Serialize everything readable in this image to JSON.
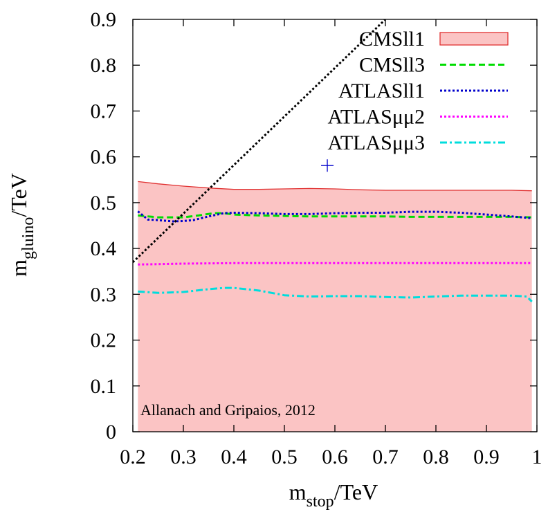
{
  "chart_data": {
    "type": "area",
    "xlabel": {
      "main": "m",
      "sub": "stop",
      "unit": "/TeV"
    },
    "ylabel": {
      "main": "m",
      "sub": "gluino",
      "unit": "/TeV"
    },
    "xlim": [
      0.2,
      1.0
    ],
    "ylim": [
      0.0,
      0.9
    ],
    "x_ticks": [
      0.2,
      0.3,
      0.4,
      0.5,
      0.6,
      0.7,
      0.8,
      0.9,
      1.0
    ],
    "x_tick_labels": [
      "0.2",
      "0.3",
      "0.4",
      "0.5",
      "0.6",
      "0.7",
      "0.8",
      "0.9",
      "1"
    ],
    "y_ticks": [
      0,
      0.1,
      0.2,
      0.3,
      0.4,
      0.5,
      0.6,
      0.7,
      0.8,
      0.9
    ],
    "y_tick_labels": [
      "0",
      "0.1",
      "0.2",
      "0.3",
      "0.4",
      "0.5",
      "0.6",
      "0.7",
      "0.8",
      "0.9"
    ],
    "grid": false,
    "legend_position": "top-right",
    "annotation": "Allanach and Gripaios, 2012",
    "series": [
      {
        "name": "CMSll1",
        "style": "filled-area",
        "color": "#e03030",
        "fill": "#fbc4c4",
        "x": [
          0.21,
          0.25,
          0.3,
          0.35,
          0.4,
          0.45,
          0.5,
          0.55,
          0.6,
          0.65,
          0.7,
          0.75,
          0.8,
          0.85,
          0.9,
          0.95,
          0.99
        ],
        "y": [
          0.546,
          0.541,
          0.536,
          0.532,
          0.529,
          0.529,
          0.53,
          0.531,
          0.53,
          0.528,
          0.527,
          0.527,
          0.527,
          0.527,
          0.527,
          0.527,
          0.526
        ]
      },
      {
        "name": "CMSll3",
        "style": "dashed",
        "color": "#00dd00",
        "x": [
          0.21,
          0.25,
          0.3,
          0.33,
          0.36,
          0.38,
          0.4,
          0.45,
          0.5,
          0.55,
          0.6,
          0.65,
          0.7,
          0.75,
          0.8,
          0.85,
          0.9,
          0.95,
          0.99
        ],
        "y": [
          0.472,
          0.468,
          0.468,
          0.472,
          0.477,
          0.477,
          0.474,
          0.472,
          0.471,
          0.47,
          0.47,
          0.47,
          0.47,
          0.469,
          0.469,
          0.469,
          0.469,
          0.469,
          0.468
        ]
      },
      {
        "name": "ATLASll1",
        "style": "dotted",
        "color": "#0000cc",
        "x": [
          0.21,
          0.23,
          0.25,
          0.28,
          0.3,
          0.32,
          0.35,
          0.38,
          0.4,
          0.45,
          0.5,
          0.55,
          0.6,
          0.65,
          0.7,
          0.75,
          0.8,
          0.85,
          0.9,
          0.95,
          0.99
        ],
        "y": [
          0.481,
          0.463,
          0.462,
          0.459,
          0.46,
          0.462,
          0.47,
          0.477,
          0.478,
          0.477,
          0.475,
          0.475,
          0.477,
          0.478,
          0.478,
          0.48,
          0.48,
          0.478,
          0.474,
          0.47,
          0.466
        ]
      },
      {
        "name": "ATLASμμ2",
        "style": "dotted",
        "color": "#ff00ff",
        "x": [
          0.21,
          0.3,
          0.4,
          0.5,
          0.6,
          0.7,
          0.8,
          0.9,
          0.99
        ],
        "y": [
          0.365,
          0.367,
          0.368,
          0.368,
          0.368,
          0.368,
          0.368,
          0.368,
          0.368
        ]
      },
      {
        "name": "ATLASμμ3",
        "style": "dash-dot",
        "color": "#00dddd",
        "x": [
          0.21,
          0.25,
          0.3,
          0.35,
          0.38,
          0.4,
          0.45,
          0.5,
          0.55,
          0.6,
          0.65,
          0.7,
          0.75,
          0.8,
          0.85,
          0.9,
          0.95,
          0.98,
          0.99
        ],
        "y": [
          0.306,
          0.303,
          0.305,
          0.311,
          0.314,
          0.314,
          0.308,
          0.298,
          0.295,
          0.296,
          0.296,
          0.294,
          0.293,
          0.295,
          0.297,
          0.297,
          0.297,
          0.295,
          0.284
        ]
      }
    ],
    "diagonal_line": {
      "style": "dotted",
      "color": "#000000",
      "x": [
        0.2,
        0.7
      ],
      "y": [
        0.37,
        0.9
      ]
    },
    "marker": {
      "symbol": "+",
      "color": "#0000cc",
      "x": 0.585,
      "y": 0.581
    }
  }
}
